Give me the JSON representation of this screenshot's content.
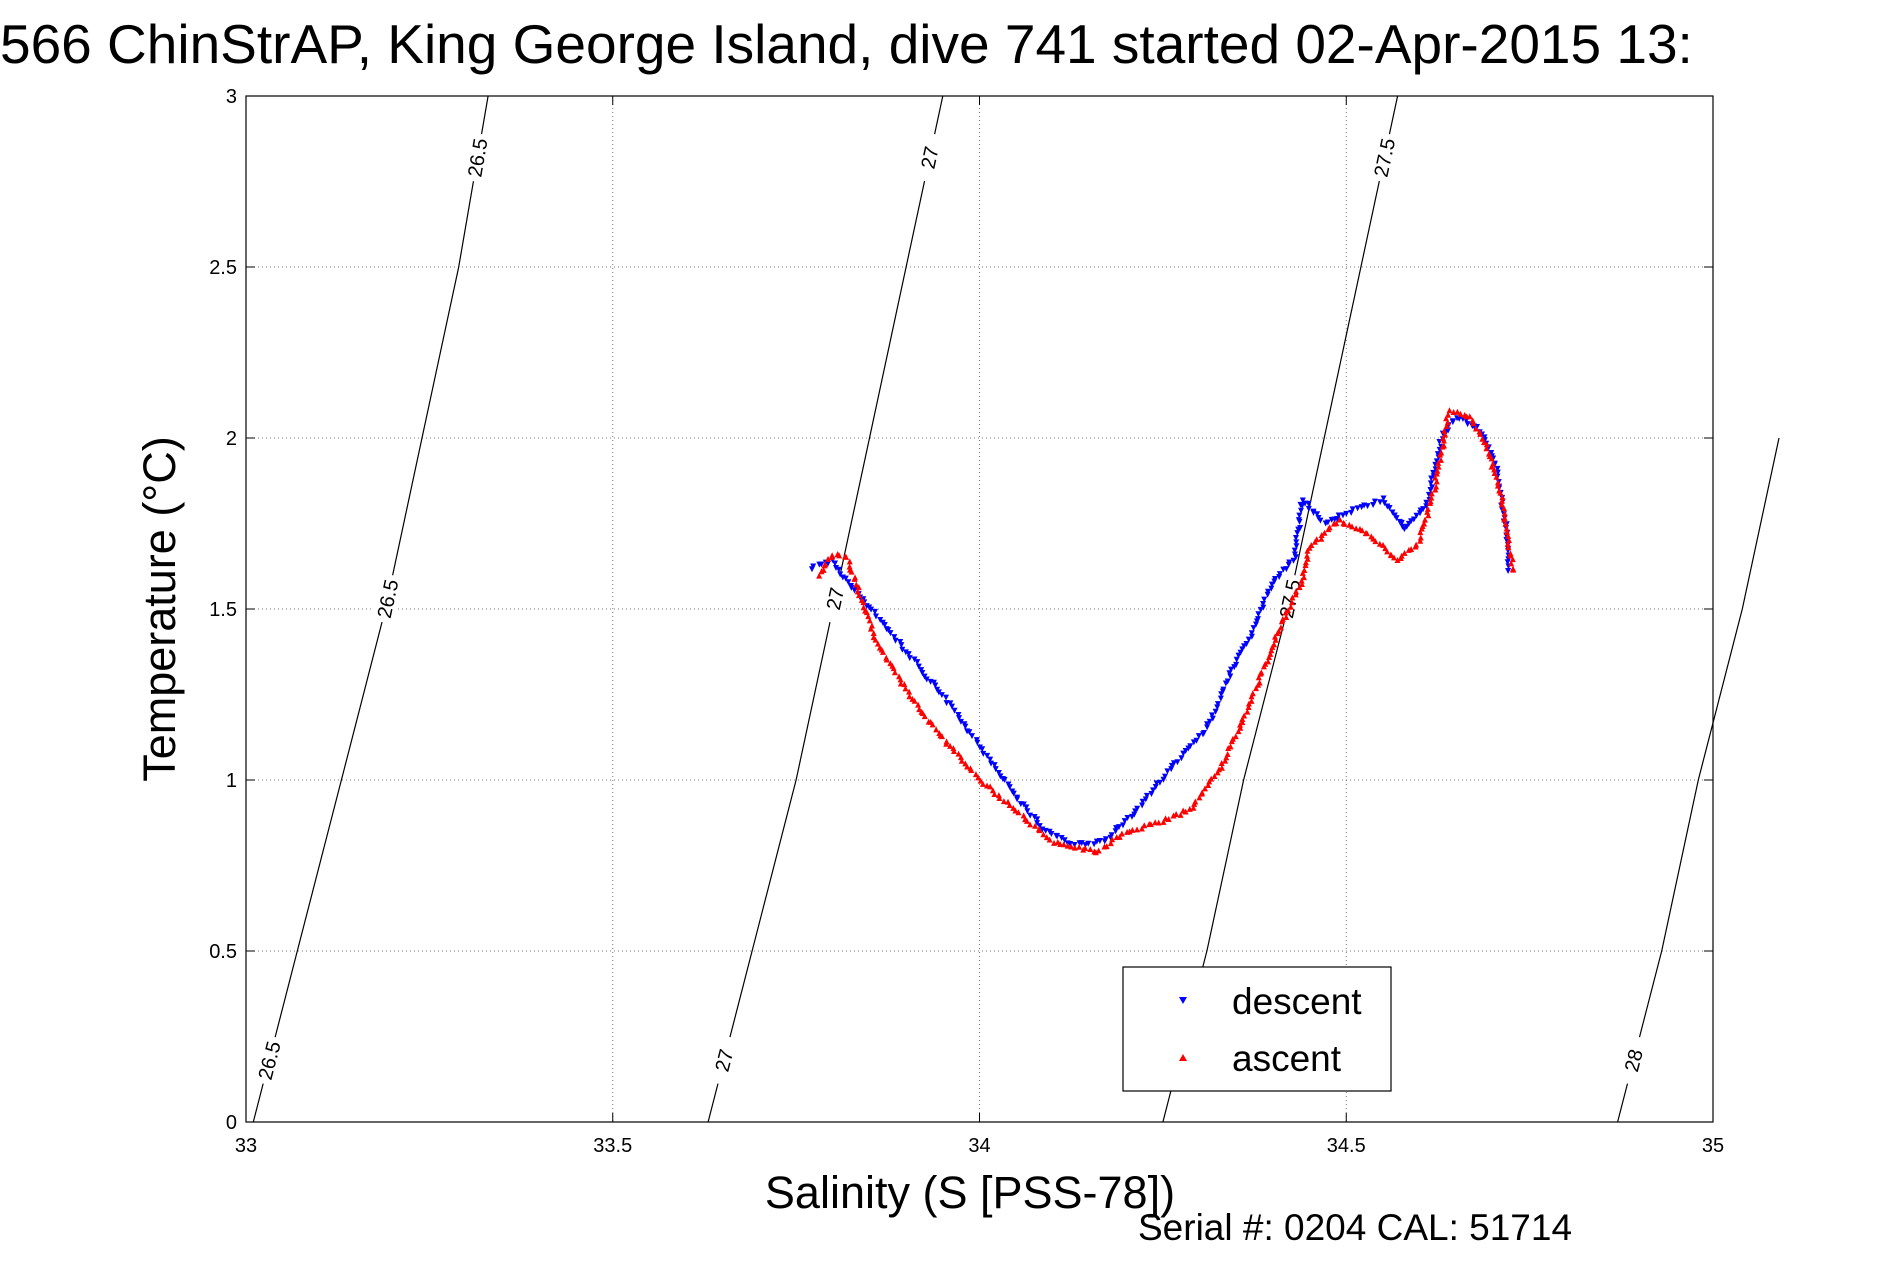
{
  "chart_data": {
    "type": "scatter",
    "title": "566 ChinStrAP, King George Island, dive 741 started 02-Apr-2015 13:",
    "xlabel": "Salinity (S [PSS-78])",
    "ylabel": "Temperature (°C)",
    "xlim": [
      33,
      35
    ],
    "ylim": [
      0,
      3
    ],
    "x_ticks": [
      "33",
      "33.5",
      "34",
      "34.5",
      "35"
    ],
    "y_ticks": [
      "0",
      "0.5",
      "1",
      "1.5",
      "2",
      "2.5",
      "3"
    ],
    "grid": true,
    "legend_position": "bottom-right",
    "footer": "Serial #: 0204  CAL: 51714",
    "colors": {
      "descent": "#0000ff",
      "ascent": "#ff0000",
      "isopycnal": "#000000"
    },
    "isopycnals": [
      {
        "sigma": 26.5,
        "label": "26.5",
        "points": [
          [
            33.01,
            0
          ],
          [
            33.07,
            0.5
          ],
          [
            33.13,
            1.0
          ],
          [
            33.19,
            1.5
          ],
          [
            33.24,
            2.0
          ],
          [
            33.29,
            2.5
          ],
          [
            33.33,
            3.0
          ]
        ]
      },
      {
        "sigma": 27,
        "label": "27",
        "points": [
          [
            33.63,
            0
          ],
          [
            33.69,
            0.5
          ],
          [
            33.75,
            1.0
          ],
          [
            33.8,
            1.5
          ],
          [
            33.85,
            2.0
          ],
          [
            33.9,
            2.5
          ],
          [
            33.95,
            3.0
          ]
        ]
      },
      {
        "sigma": 27.5,
        "label": "27.5",
        "points": [
          [
            34.25,
            0
          ],
          [
            34.31,
            0.5
          ],
          [
            34.36,
            1.0
          ],
          [
            34.42,
            1.5
          ],
          [
            34.47,
            2.0
          ],
          [
            34.52,
            2.5
          ],
          [
            34.57,
            3.0
          ]
        ]
      },
      {
        "sigma": 28,
        "label": "28",
        "points": [
          [
            34.87,
            0
          ],
          [
            34.93,
            0.5
          ],
          [
            34.98,
            1.0
          ],
          [
            35.04,
            1.5
          ],
          [
            35.09,
            2.0
          ]
        ]
      }
    ],
    "series": [
      {
        "name": "descent",
        "marker": "triangle-down",
        "anchors": [
          [
            33.77,
            1.62
          ],
          [
            33.8,
            1.64
          ],
          [
            33.83,
            1.55
          ],
          [
            33.86,
            1.48
          ],
          [
            33.91,
            1.35
          ],
          [
            33.96,
            1.22
          ],
          [
            34.01,
            1.07
          ],
          [
            34.05,
            0.95
          ],
          [
            34.09,
            0.85
          ],
          [
            34.13,
            0.81
          ],
          [
            34.17,
            0.82
          ],
          [
            34.21,
            0.9
          ],
          [
            34.26,
            1.03
          ],
          [
            34.31,
            1.15
          ],
          [
            34.34,
            1.3
          ],
          [
            34.37,
            1.42
          ],
          [
            34.4,
            1.58
          ],
          [
            34.43,
            1.65
          ],
          [
            34.44,
            1.82
          ],
          [
            34.47,
            1.75
          ],
          [
            34.5,
            1.78
          ],
          [
            34.55,
            1.82
          ],
          [
            34.58,
            1.73
          ],
          [
            34.61,
            1.8
          ],
          [
            34.63,
            2.0
          ],
          [
            34.65,
            2.06
          ],
          [
            34.68,
            2.03
          ],
          [
            34.7,
            1.95
          ],
          [
            34.71,
            1.85
          ],
          [
            34.72,
            1.7
          ],
          [
            34.72,
            1.6
          ]
        ]
      },
      {
        "name": "ascent",
        "marker": "triangle-up",
        "anchors": [
          [
            33.78,
            1.6
          ],
          [
            33.8,
            1.66
          ],
          [
            33.82,
            1.65
          ],
          [
            33.86,
            1.4
          ],
          [
            33.92,
            1.2
          ],
          [
            33.96,
            1.1
          ],
          [
            34.0,
            1.0
          ],
          [
            34.05,
            0.91
          ],
          [
            34.1,
            0.82
          ],
          [
            34.16,
            0.79
          ],
          [
            34.2,
            0.85
          ],
          [
            34.25,
            0.88
          ],
          [
            34.29,
            0.92
          ],
          [
            34.33,
            1.04
          ],
          [
            34.36,
            1.18
          ],
          [
            34.39,
            1.34
          ],
          [
            34.41,
            1.45
          ],
          [
            34.44,
            1.58
          ],
          [
            34.45,
            1.68
          ],
          [
            34.49,
            1.76
          ],
          [
            34.53,
            1.72
          ],
          [
            34.57,
            1.64
          ],
          [
            34.6,
            1.7
          ],
          [
            34.62,
            1.85
          ],
          [
            34.64,
            2.08
          ],
          [
            34.67,
            2.06
          ],
          [
            34.69,
            1.98
          ],
          [
            34.71,
            1.85
          ],
          [
            34.72,
            1.7
          ],
          [
            34.73,
            1.6
          ]
        ]
      }
    ]
  }
}
